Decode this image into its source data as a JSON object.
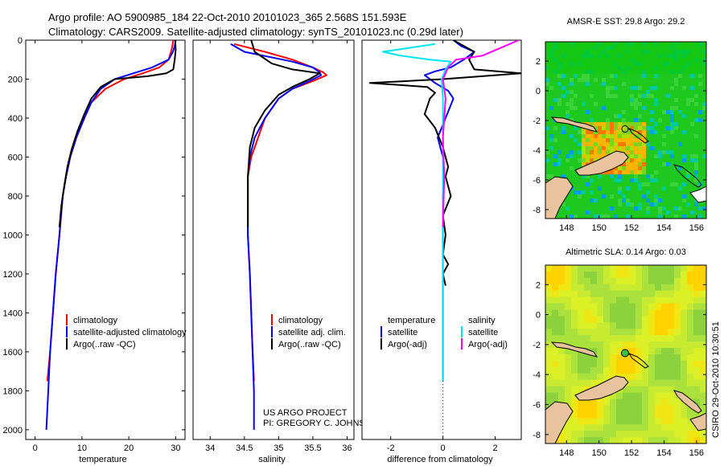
{
  "title": {
    "line1": "Argo profile: AO 5900985_184 22-Oct-2010 20101023_365 2.568S 151.593E",
    "line2": "Climatology: CARS2009. Satellite-adjusted climatology: synTS_20101023.nc (0.29d later)"
  },
  "colors": {
    "climatology": "#ff0000",
    "satellite": "#0000ff",
    "argo": "#000000",
    "salinity_satellite": "#00e5ee",
    "salinity_argo": "#ff00ff",
    "land": "#e8c39e"
  },
  "project_text": {
    "line1": "US ARGO PROJECT",
    "line2": "PI: GREGORY C. JOHNSON"
  },
  "side_label": "CSIRO 29-Oct-2010 10:30:51",
  "depth_ticks": [
    "0",
    "200",
    "400",
    "600",
    "800",
    "1000",
    "1200",
    "1400",
    "1600",
    "1800",
    "2000"
  ],
  "chart_data": [
    {
      "type": "line",
      "name": "temperature-panel",
      "xlabel": "temperature",
      "xlim": [
        -2,
        32
      ],
      "ylim": [
        0,
        2050
      ],
      "y_reversed": true,
      "xticks": [
        "0",
        "10",
        "20",
        "30"
      ],
      "legend": [
        "climatology",
        "satellite-adjusted climatology",
        "Argo(..raw -QC)"
      ],
      "series": [
        {
          "name": "climatology",
          "color": "red",
          "points": [
            [
              29.5,
              0
            ],
            [
              29.3,
              30
            ],
            [
              29.0,
              60
            ],
            [
              28.5,
              100
            ],
            [
              26.5,
              140
            ],
            [
              23,
              170
            ],
            [
              19,
              200
            ],
            [
              15,
              250
            ],
            [
              12,
              320
            ],
            [
              10.5,
              400
            ],
            [
              8.8,
              500
            ],
            [
              7.5,
              600
            ],
            [
              6.6,
              700
            ],
            [
              5.9,
              800
            ],
            [
              5.2,
              1000
            ],
            [
              4.4,
              1200
            ],
            [
              3.8,
              1400
            ],
            [
              3.2,
              1600
            ],
            [
              2.6,
              1750
            ]
          ]
        },
        {
          "name": "satellite",
          "color": "blue",
          "points": [
            [
              30,
              0
            ],
            [
              29.8,
              30
            ],
            [
              29.4,
              60
            ],
            [
              28.5,
              100
            ],
            [
              25,
              140
            ],
            [
              21,
              170
            ],
            [
              17,
              200
            ],
            [
              14,
              250
            ],
            [
              12,
              320
            ],
            [
              10.5,
              400
            ],
            [
              8.8,
              500
            ],
            [
              7.5,
              600
            ],
            [
              6.6,
              700
            ],
            [
              5.9,
              800
            ],
            [
              5.2,
              1000
            ],
            [
              4.4,
              1200
            ],
            [
              3.8,
              1400
            ],
            [
              3.2,
              1600
            ],
            [
              2.8,
              1800
            ],
            [
              2.4,
              2000
            ]
          ]
        },
        {
          "name": "argo",
          "color": "black",
          "points": [
            [
              29.9,
              0
            ],
            [
              30,
              50
            ],
            [
              29.8,
              100
            ],
            [
              29.5,
              150
            ],
            [
              28,
              170
            ],
            [
              24,
              185
            ],
            [
              17,
              200
            ],
            [
              14,
              240
            ],
            [
              12,
              300
            ],
            [
              10.5,
              380
            ],
            [
              9,
              470
            ],
            [
              7.8,
              560
            ],
            [
              6.9,
              650
            ],
            [
              6.2,
              750
            ],
            [
              5.6,
              850
            ],
            [
              5.2,
              960
            ]
          ]
        }
      ]
    },
    {
      "type": "line",
      "name": "salinity-panel",
      "xlabel": "salinity",
      "xlim": [
        33.75,
        36.1
      ],
      "ylim": [
        0,
        2050
      ],
      "y_reversed": true,
      "xticks": [
        "34",
        "34.5",
        "35",
        "35.5",
        "36"
      ],
      "legend": [
        "climatology",
        "satellite adj. clim.",
        "Argo(..raw -QC)"
      ],
      "series": [
        {
          "name": "climatology",
          "color": "red",
          "points": [
            [
              34.35,
              20
            ],
            [
              34.8,
              60
            ],
            [
              35.2,
              100
            ],
            [
              35.5,
              140
            ],
            [
              35.65,
              165
            ],
            [
              35.7,
              180
            ],
            [
              35.5,
              210
            ],
            [
              35.2,
              250
            ],
            [
              35.0,
              300
            ],
            [
              34.8,
              400
            ],
            [
              34.7,
              500
            ],
            [
              34.6,
              600
            ],
            [
              34.55,
              700
            ],
            [
              34.55,
              800
            ],
            [
              34.55,
              1000
            ],
            [
              34.58,
              1200
            ],
            [
              34.6,
              1400
            ],
            [
              34.62,
              1600
            ],
            [
              34.64,
              1750
            ]
          ]
        },
        {
          "name": "satellite",
          "color": "blue",
          "points": [
            [
              34.3,
              20
            ],
            [
              34.5,
              60
            ],
            [
              35.2,
              110
            ],
            [
              35.5,
              140
            ],
            [
              35.6,
              165
            ],
            [
              35.62,
              180
            ],
            [
              35.45,
              210
            ],
            [
              35.2,
              250
            ],
            [
              35.0,
              300
            ],
            [
              34.8,
              400
            ],
            [
              34.65,
              500
            ],
            [
              34.58,
              600
            ],
            [
              34.55,
              700
            ],
            [
              34.55,
              800
            ],
            [
              34.55,
              1000
            ],
            [
              34.58,
              1200
            ],
            [
              34.6,
              1400
            ],
            [
              34.62,
              1600
            ],
            [
              34.64,
              1800
            ],
            [
              34.64,
              2000
            ]
          ]
        },
        {
          "name": "argo",
          "color": "black",
          "points": [
            [
              34.6,
              0
            ],
            [
              34.65,
              60
            ],
            [
              34.9,
              120
            ],
            [
              35.2,
              150
            ],
            [
              35.6,
              170
            ],
            [
              35.45,
              200
            ],
            [
              35.2,
              240
            ],
            [
              35.0,
              280
            ],
            [
              34.8,
              360
            ],
            [
              34.65,
              450
            ],
            [
              34.58,
              550
            ],
            [
              34.55,
              700
            ],
            [
              34.55,
              850
            ],
            [
              34.55,
              960
            ]
          ]
        }
      ]
    },
    {
      "type": "line",
      "name": "difference-panel",
      "xlabel": "difference from climatology",
      "xlim": [
        -3.1,
        3.0
      ],
      "ylim": [
        0,
        2050
      ],
      "y_reversed": true,
      "xticks": [
        "-2",
        "0",
        "2"
      ],
      "legend_headers": [
        "temperature",
        "salinity"
      ],
      "legend": [
        "satellite",
        "Argo(-adj)",
        "satellite",
        "Argo(-adj)"
      ],
      "series": [
        {
          "name": "temperature satellite",
          "color": "blue",
          "points": [
            [
              0.4,
              0
            ],
            [
              0.7,
              30
            ],
            [
              1.2,
              60
            ],
            [
              0.8,
              100
            ],
            [
              0.3,
              140
            ],
            [
              -0.3,
              160
            ],
            [
              -0.7,
              180
            ],
            [
              -0.3,
              220
            ],
            [
              0.2,
              260
            ],
            [
              0.4,
              300
            ],
            [
              0.1,
              400
            ],
            [
              -0.2,
              500
            ],
            [
              0,
              600
            ],
            [
              0.05,
              700
            ],
            [
              0,
              800
            ],
            [
              0,
              1000
            ],
            [
              0,
              1200
            ],
            [
              0,
              1400
            ],
            [
              0,
              1600
            ],
            [
              0,
              1750
            ]
          ]
        },
        {
          "name": "temperature argo",
          "color": "black",
          "points": [
            [
              0.4,
              0
            ],
            [
              0.8,
              30
            ],
            [
              1.2,
              60
            ],
            [
              1.0,
              100
            ],
            [
              1.2,
              150
            ],
            [
              3.0,
              170
            ],
            [
              0,
              200
            ],
            [
              -2.8,
              220
            ],
            [
              -0.6,
              240
            ],
            [
              -0.3,
              270
            ],
            [
              -0.5,
              300
            ],
            [
              -0.7,
              380
            ],
            [
              -0.3,
              450
            ],
            [
              0,
              550
            ],
            [
              0.2,
              650
            ],
            [
              0.1,
              700
            ],
            [
              0.3,
              800
            ],
            [
              0,
              900
            ],
            [
              0.1,
              1000
            ],
            [
              0,
              1100
            ],
            [
              0.2,
              1150
            ],
            [
              0,
              1200
            ],
            [
              0.1,
              1260
            ]
          ]
        },
        {
          "name": "salinity satellite",
          "color": "cyan",
          "points": [
            [
              -0.3,
              20
            ],
            [
              -2.3,
              60
            ],
            [
              -1.6,
              80
            ],
            [
              -0.5,
              100
            ],
            [
              0.3,
              110
            ],
            [
              0.1,
              150
            ],
            [
              -0.05,
              200
            ],
            [
              0,
              300
            ],
            [
              0,
              500
            ],
            [
              0,
              800
            ],
            [
              0,
              1000
            ],
            [
              0,
              1200
            ],
            [
              0,
              1400
            ],
            [
              0,
              1600
            ],
            [
              0,
              1750
            ]
          ]
        },
        {
          "name": "salinity argo",
          "color": "magenta",
          "points": [
            [
              2.9,
              0
            ],
            [
              1.5,
              80
            ],
            [
              0.5,
              100
            ],
            [
              0.2,
              140
            ],
            [
              0,
              200
            ],
            [
              0.1,
              300
            ],
            [
              0,
              500
            ],
            [
              0.05,
              700
            ],
            [
              0,
              960
            ]
          ]
        }
      ]
    },
    {
      "type": "heatmap",
      "name": "sst-map",
      "title": "AMSR-E SST: 29.8 Argo: 29.2",
      "xticks": [
        "148",
        "150",
        "152",
        "154",
        "156"
      ],
      "yticks": [
        "2",
        "0",
        "-2",
        "-4",
        "-6",
        "-8"
      ],
      "marker": {
        "lon": 151.6,
        "lat": -2.57
      }
    },
    {
      "type": "heatmap",
      "name": "sla-map",
      "title": "Altimetric SLA: 0.14 Argo: 0.03",
      "xticks": [
        "148",
        "150",
        "152",
        "154",
        "156"
      ],
      "yticks": [
        "2",
        "0",
        "-2",
        "-4",
        "-6",
        "-8"
      ],
      "marker": {
        "lon": 151.6,
        "lat": -2.57
      }
    }
  ]
}
